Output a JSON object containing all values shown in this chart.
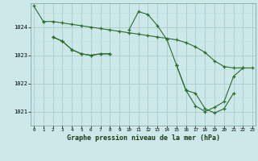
{
  "title": "Graphe pression niveau de la mer (hPa)",
  "background_color": "#cce8e8",
  "grid_color_major": "#aacccc",
  "grid_color_minor": "#bbdddd",
  "line_color": "#2d6b2d",
  "x_ticks": [
    0,
    1,
    2,
    3,
    4,
    5,
    6,
    7,
    8,
    9,
    10,
    11,
    12,
    13,
    14,
    15,
    16,
    17,
    18,
    19,
    20,
    21,
    22,
    23
  ],
  "y_ticks": [
    1021,
    1022,
    1023,
    1024
  ],
  "ylim": [
    1020.5,
    1024.85
  ],
  "xlim": [
    -0.3,
    23.3
  ],
  "series": [
    {
      "x": [
        0,
        1,
        2,
        3,
        4,
        5,
        6,
        7,
        8,
        9,
        10,
        11,
        12,
        13,
        14,
        15,
        16,
        17,
        18,
        19,
        20,
        21,
        22,
        23
      ],
      "y": [
        1024.75,
        1024.2,
        null,
        null,
        null,
        null,
        null,
        null,
        null,
        null,
        null,
        null,
        null,
        null,
        null,
        null,
        null,
        null,
        null,
        null,
        null,
        null,
        null,
        null
      ]
    },
    {
      "x": [
        0,
        1,
        2,
        3,
        4,
        5,
        6,
        7,
        8,
        9,
        10,
        11,
        12,
        13,
        14,
        15,
        16,
        17,
        18,
        19,
        20,
        21,
        22,
        23
      ],
      "y": [
        null,
        1024.2,
        1024.2,
        1024.15,
        1024.1,
        1024.05,
        1024.0,
        1023.95,
        1023.9,
        1023.85,
        1023.8,
        1023.75,
        1023.7,
        1023.65,
        1023.6,
        1023.55,
        1023.45,
        1023.3,
        1023.1,
        1022.8,
        1022.6,
        1022.55,
        1022.55,
        1022.55
      ]
    },
    {
      "x": [
        0,
        1,
        2,
        3,
        4,
        5,
        6,
        7,
        8,
        9,
        10,
        11,
        12,
        13,
        14,
        15,
        16,
        17,
        18,
        19,
        20,
        21,
        22,
        23
      ],
      "y": [
        null,
        null,
        1023.65,
        1023.5,
        1023.2,
        1023.05,
        1023.0,
        1023.05,
        1023.05,
        null,
        1023.9,
        1024.55,
        1024.45,
        1024.05,
        1023.55,
        1022.65,
        1021.75,
        1021.65,
        1021.1,
        1020.95,
        1021.1,
        1021.65,
        null,
        null
      ]
    },
    {
      "x": [
        0,
        1,
        2,
        3,
        4,
        5,
        6,
        7,
        8,
        9,
        10,
        11,
        12,
        13,
        14,
        15,
        16,
        17,
        18,
        19,
        20,
        21,
        22,
        23
      ],
      "y": [
        null,
        null,
        1023.65,
        1023.5,
        1023.2,
        1023.05,
        1023.0,
        1023.05,
        1023.05,
        null,
        null,
        null,
        null,
        null,
        null,
        1022.65,
        1021.75,
        1021.2,
        1021.0,
        1021.15,
        1021.35,
        1022.25,
        1022.55,
        null
      ]
    }
  ]
}
